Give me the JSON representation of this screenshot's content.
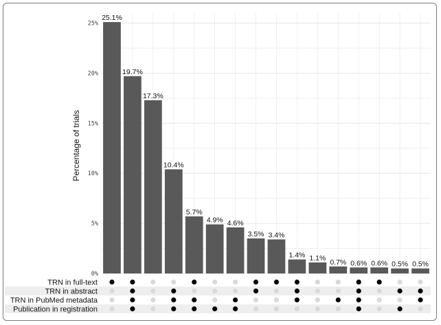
{
  "chart_data": {
    "type": "bar",
    "ylabel": "Percentage of trials",
    "ylim": [
      0,
      26
    ],
    "yticks": [
      0,
      5,
      10,
      15,
      20,
      25
    ],
    "ytick_labels": [
      "0%",
      "5%",
      "10%",
      "15%",
      "20%",
      "25%"
    ],
    "grid": true,
    "values": [
      25.1,
      19.7,
      17.3,
      10.4,
      5.7,
      4.9,
      4.6,
      3.5,
      3.4,
      1.4,
      1.1,
      0.7,
      0.6,
      0.6,
      0.5,
      0.5
    ],
    "value_labels": [
      "25.1%",
      "19.7%",
      "17.3%",
      "10.4%",
      "5.7%",
      "4.9%",
      "4.6%",
      "3.5%",
      "3.4%",
      "1.4%",
      "1.1%",
      "0.7%",
      "0.6%",
      "0.6%",
      "0.5%",
      "0.5%"
    ],
    "sets": [
      "TRN in full-text",
      "TRN in abstract",
      "TRN in PubMed metadata",
      "Publication in registration"
    ],
    "membership": [
      [
        1,
        0,
        0,
        0
      ],
      [
        1,
        1,
        1,
        1
      ],
      [
        0,
        0,
        0,
        0
      ],
      [
        0,
        1,
        1,
        1
      ],
      [
        1,
        0,
        1,
        1
      ],
      [
        0,
        0,
        0,
        1
      ],
      [
        0,
        0,
        1,
        1
      ],
      [
        1,
        1,
        0,
        0
      ],
      [
        1,
        0,
        0,
        0
      ],
      [
        1,
        1,
        1,
        0
      ],
      [
        0,
        0,
        0,
        0
      ],
      [
        0,
        0,
        1,
        0
      ],
      [
        1,
        1,
        1,
        1
      ],
      [
        1,
        0,
        0,
        0
      ],
      [
        0,
        1,
        0,
        1
      ],
      [
        0,
        1,
        1,
        0
      ]
    ],
    "colors": {
      "bar": "#595959",
      "dot_on": "#000000",
      "dot_off": "#d9d9d9",
      "grid": "#e6e6e6",
      "matrix_band": "#eeeeee"
    }
  }
}
